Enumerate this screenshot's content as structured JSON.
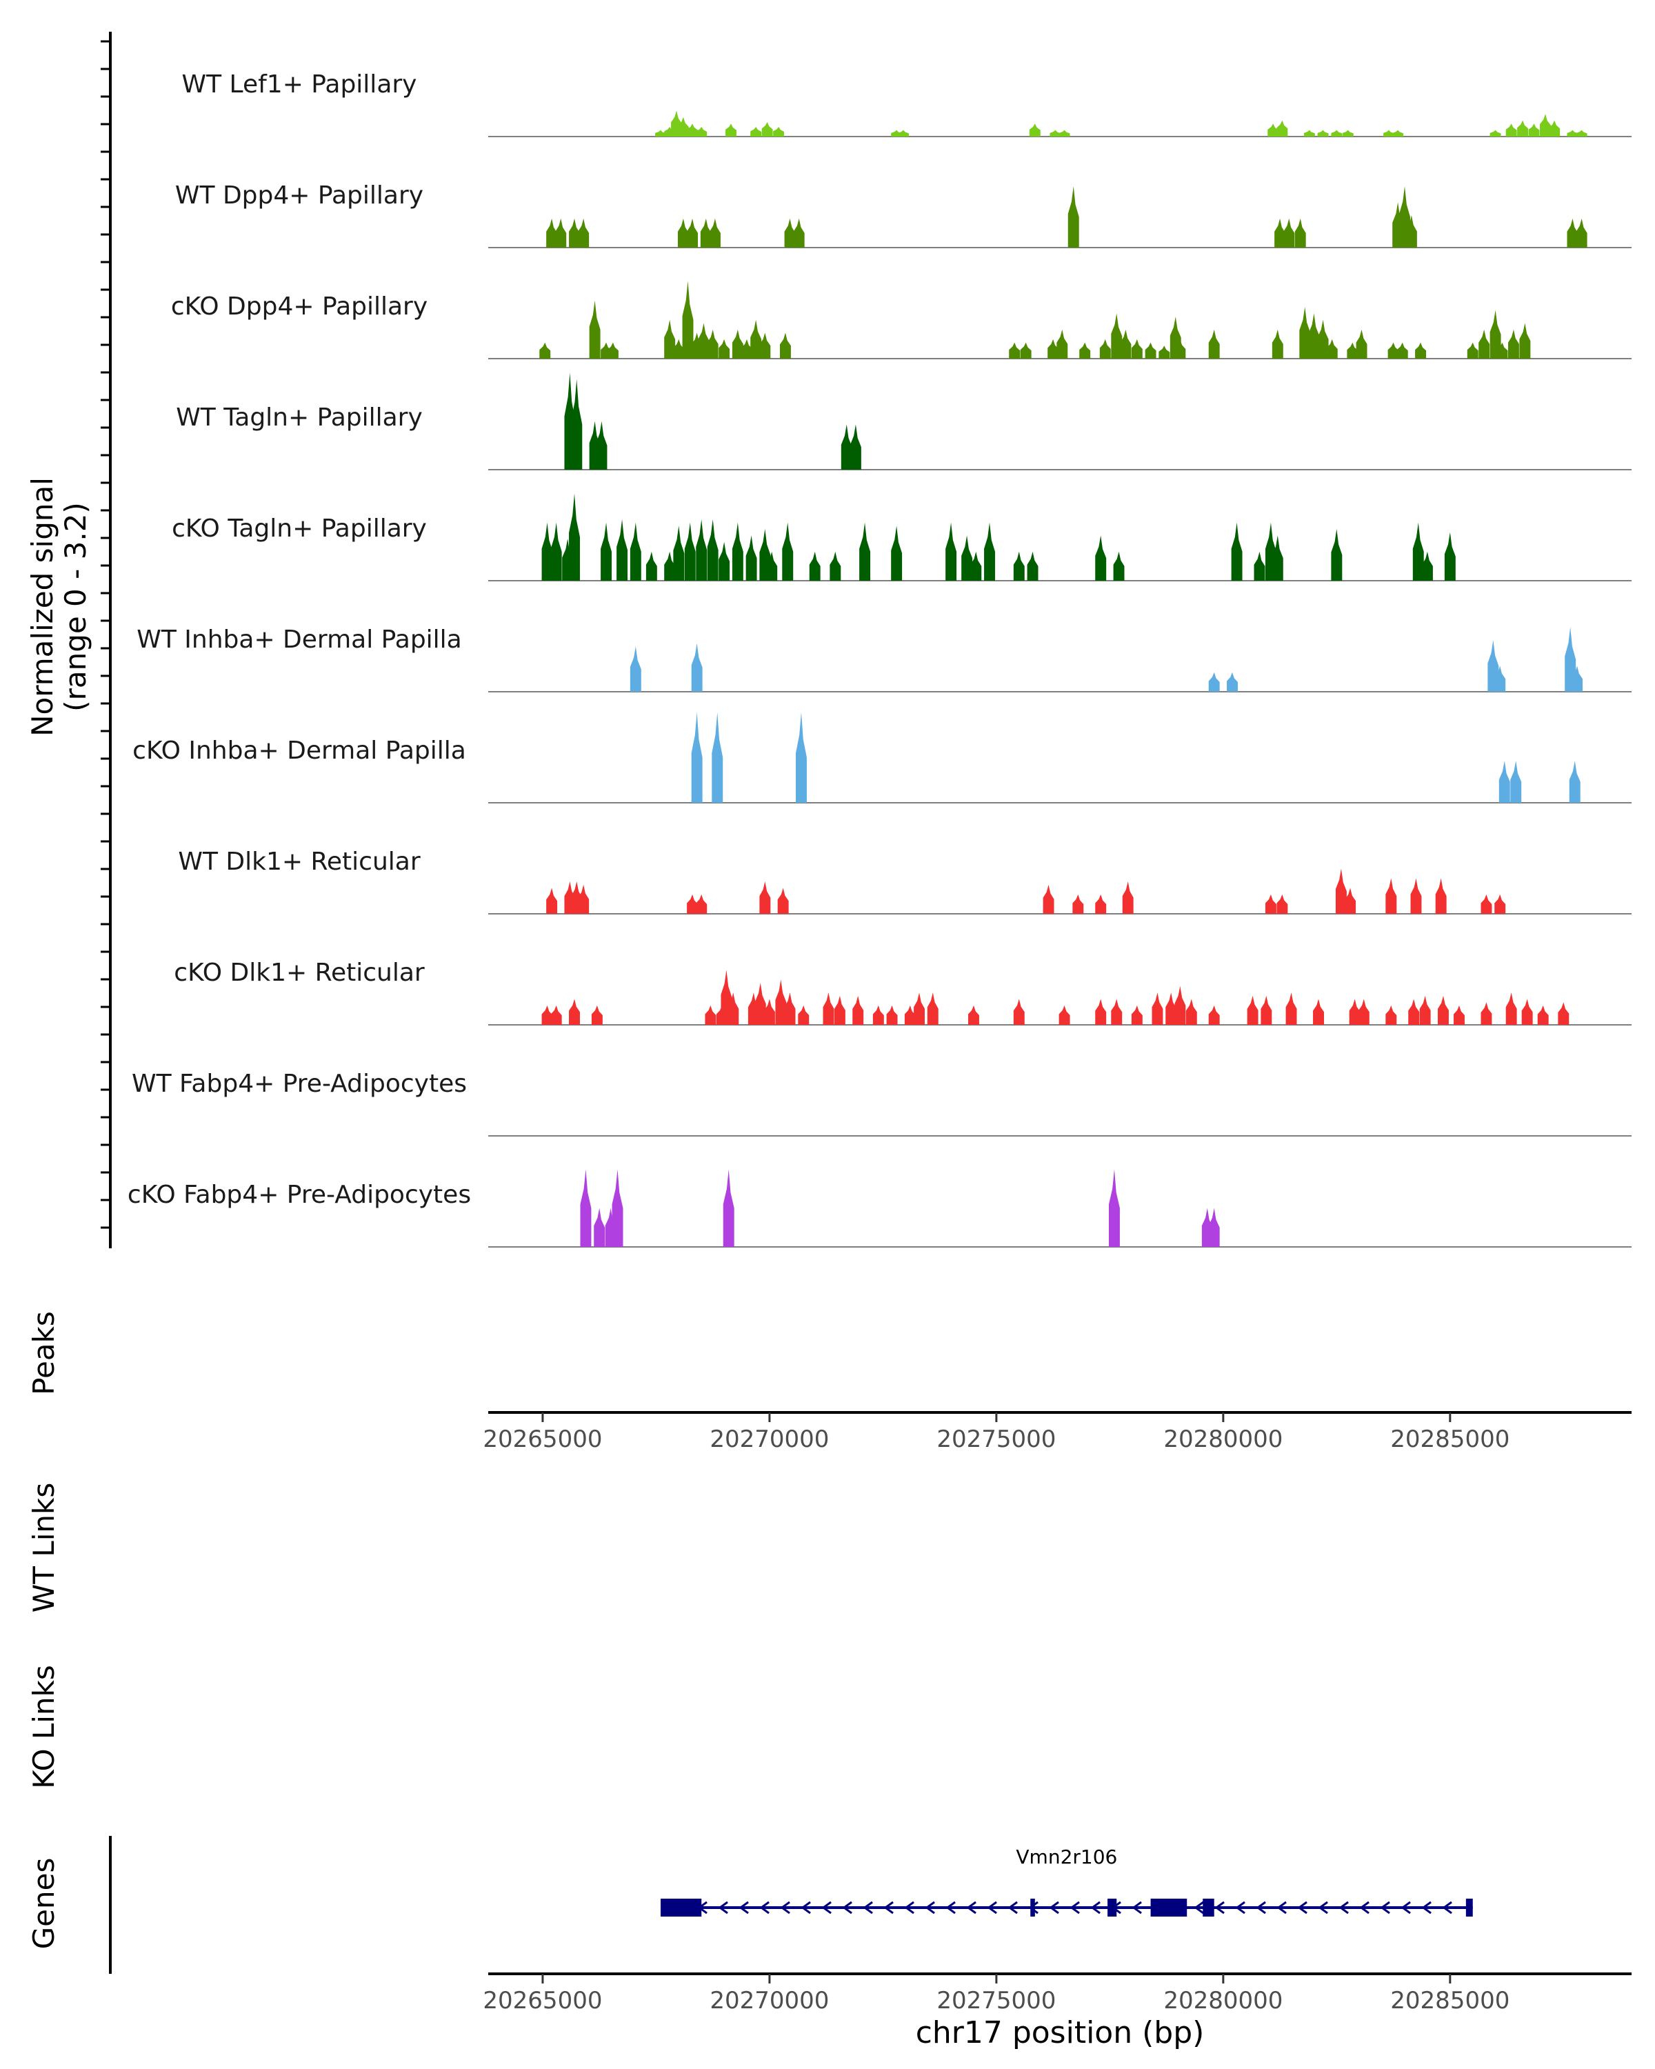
{
  "chart_data": {
    "type": "area",
    "title": "",
    "xlabel": "chr17 position (bp)",
    "ylabel": "Normalized signal",
    "ylabel_range": "(range 0 - 3.2)",
    "ylim": [
      0,
      3.2
    ],
    "xlim": [
      20263800,
      20289000
    ],
    "x_ticks": [
      20265000,
      20270000,
      20275000,
      20280000,
      20285000
    ],
    "x_tick_labels": [
      "20265000",
      "20270000",
      "20275000",
      "20280000",
      "20285000"
    ],
    "series": [
      {
        "name": "WT Lef1+ Papillary",
        "color": "#7ACC1A",
        "peaks": [
          [
            20267600,
            0.2
          ],
          [
            20267800,
            0.3
          ],
          [
            20267950,
            0.8
          ],
          [
            20268100,
            0.6
          ],
          [
            20268300,
            0.4
          ],
          [
            20268500,
            0.3
          ],
          [
            20269150,
            0.4
          ],
          [
            20269700,
            0.3
          ],
          [
            20269950,
            0.45
          ],
          [
            20270200,
            0.3
          ],
          [
            20272800,
            0.2
          ],
          [
            20272950,
            0.2
          ],
          [
            20275850,
            0.4
          ],
          [
            20276300,
            0.2
          ],
          [
            20276500,
            0.2
          ],
          [
            20281100,
            0.4
          ],
          [
            20281300,
            0.5
          ],
          [
            20281900,
            0.2
          ],
          [
            20282200,
            0.2
          ],
          [
            20282500,
            0.2
          ],
          [
            20282750,
            0.2
          ],
          [
            20283650,
            0.2
          ],
          [
            20283850,
            0.2
          ],
          [
            20286000,
            0.2
          ],
          [
            20286350,
            0.4
          ],
          [
            20286600,
            0.5
          ],
          [
            20286850,
            0.4
          ],
          [
            20287100,
            0.7
          ],
          [
            20287300,
            0.5
          ],
          [
            20287700,
            0.2
          ],
          [
            20287900,
            0.2
          ]
        ]
      },
      {
        "name": "WT Dpp4+ Papillary",
        "color": "#4D8A00",
        "peaks": [
          [
            20265200,
            0.9
          ],
          [
            20265400,
            0.9
          ],
          [
            20265700,
            0.9
          ],
          [
            20265900,
            0.9
          ],
          [
            20268100,
            0.9
          ],
          [
            20268300,
            0.9
          ],
          [
            20268600,
            0.9
          ],
          [
            20268800,
            0.9
          ],
          [
            20270450,
            0.9
          ],
          [
            20270650,
            0.9
          ],
          [
            20276700,
            1.9
          ],
          [
            20281250,
            0.9
          ],
          [
            20281450,
            0.9
          ],
          [
            20281700,
            0.9
          ],
          [
            20283850,
            1.4
          ],
          [
            20284000,
            1.9
          ],
          [
            20284150,
            1.0
          ],
          [
            20287700,
            0.9
          ],
          [
            20287900,
            0.9
          ]
        ]
      },
      {
        "name": "cKO Dpp4+ Papillary",
        "color": "#4D8A00",
        "peaks": [
          [
            20265050,
            0.5
          ],
          [
            20266150,
            1.8
          ],
          [
            20266400,
            0.5
          ],
          [
            20266550,
            0.5
          ],
          [
            20267800,
            1.2
          ],
          [
            20268000,
            0.6
          ],
          [
            20268200,
            2.4
          ],
          [
            20268400,
            0.8
          ],
          [
            20268550,
            1.1
          ],
          [
            20268750,
            0.9
          ],
          [
            20269000,
            0.6
          ],
          [
            20269300,
            0.9
          ],
          [
            20269500,
            0.6
          ],
          [
            20269700,
            1.2
          ],
          [
            20269900,
            0.8
          ],
          [
            20270350,
            0.8
          ],
          [
            20275400,
            0.5
          ],
          [
            20275650,
            0.5
          ],
          [
            20276250,
            0.6
          ],
          [
            20276450,
            0.9
          ],
          [
            20276950,
            0.5
          ],
          [
            20277400,
            0.6
          ],
          [
            20277650,
            1.4
          ],
          [
            20277850,
            0.9
          ],
          [
            20278100,
            0.6
          ],
          [
            20278400,
            0.5
          ],
          [
            20278700,
            0.4
          ],
          [
            20278950,
            1.3
          ],
          [
            20279050,
            0.6
          ],
          [
            20279800,
            0.9
          ],
          [
            20281200,
            0.9
          ],
          [
            20281800,
            1.6
          ],
          [
            20282000,
            1.4
          ],
          [
            20282200,
            1.2
          ],
          [
            20282400,
            0.6
          ],
          [
            20282850,
            0.5
          ],
          [
            20283050,
            0.9
          ],
          [
            20283750,
            0.5
          ],
          [
            20283950,
            0.5
          ],
          [
            20284350,
            0.5
          ],
          [
            20285500,
            0.5
          ],
          [
            20285750,
            0.9
          ],
          [
            20286000,
            1.5
          ],
          [
            20286150,
            0.5
          ],
          [
            20286400,
            0.9
          ],
          [
            20286650,
            1.1
          ]
        ]
      },
      {
        "name": "WT Tagln+ Papillary",
        "color": "#005E00",
        "peaks": [
          [
            20265600,
            3.0
          ],
          [
            20265750,
            2.8
          ],
          [
            20266150,
            1.5
          ],
          [
            20266300,
            1.5
          ],
          [
            20271700,
            1.4
          ],
          [
            20271900,
            1.4
          ]
        ]
      },
      {
        "name": "cKO Tagln+ Papillary",
        "color": "#005E00",
        "peaks": [
          [
            20265100,
            1.8
          ],
          [
            20265300,
            1.8
          ],
          [
            20265550,
            1.3
          ],
          [
            20265700,
            2.7
          ],
          [
            20266400,
            1.8
          ],
          [
            20266750,
            1.9
          ],
          [
            20267050,
            1.8
          ],
          [
            20267400,
            0.9
          ],
          [
            20267800,
            0.9
          ],
          [
            20268000,
            1.7
          ],
          [
            20268250,
            1.8
          ],
          [
            20268500,
            1.9
          ],
          [
            20268750,
            1.9
          ],
          [
            20269000,
            1.2
          ],
          [
            20269300,
            1.8
          ],
          [
            20269600,
            1.4
          ],
          [
            20269900,
            1.6
          ],
          [
            20270050,
            0.9
          ],
          [
            20270400,
            1.8
          ],
          [
            20271000,
            0.9
          ],
          [
            20271450,
            0.9
          ],
          [
            20272100,
            1.8
          ],
          [
            20272800,
            1.7
          ],
          [
            20274000,
            1.8
          ],
          [
            20274350,
            1.4
          ],
          [
            20274550,
            0.9
          ],
          [
            20274850,
            1.8
          ],
          [
            20275500,
            0.9
          ],
          [
            20275800,
            0.9
          ],
          [
            20277300,
            1.4
          ],
          [
            20277700,
            0.9
          ],
          [
            20280300,
            1.8
          ],
          [
            20280800,
            0.9
          ],
          [
            20281050,
            1.8
          ],
          [
            20281200,
            1.4
          ],
          [
            20282500,
            1.6
          ],
          [
            20284300,
            1.8
          ],
          [
            20284500,
            0.9
          ],
          [
            20285000,
            1.5
          ]
        ]
      },
      {
        "name": "WT Inhba+ Dermal Papilla",
        "color": "#5DADE2",
        "peaks": [
          [
            20267050,
            1.4
          ],
          [
            20268400,
            1.5
          ],
          [
            20279800,
            0.6
          ],
          [
            20280200,
            0.6
          ],
          [
            20285950,
            1.6
          ],
          [
            20286100,
            0.8
          ],
          [
            20287650,
            2.0
          ],
          [
            20287800,
            0.8
          ]
        ]
      },
      {
        "name": "cKO Inhba+ Dermal Papilla",
        "color": "#5DADE2",
        "peaks": [
          [
            20268400,
            2.8
          ],
          [
            20268850,
            2.8
          ],
          [
            20270700,
            2.8
          ],
          [
            20286200,
            1.3
          ],
          [
            20286450,
            1.3
          ],
          [
            20287750,
            1.3
          ]
        ]
      },
      {
        "name": "WT Dlk1+ Reticular",
        "color": "#F23030",
        "peaks": [
          [
            20265200,
            0.8
          ],
          [
            20265600,
            1.0
          ],
          [
            20265750,
            1.0
          ],
          [
            20265900,
            0.9
          ],
          [
            20268300,
            0.6
          ],
          [
            20268500,
            0.6
          ],
          [
            20269900,
            1.0
          ],
          [
            20270300,
            0.8
          ],
          [
            20276150,
            0.9
          ],
          [
            20276800,
            0.6
          ],
          [
            20277300,
            0.6
          ],
          [
            20277900,
            1.0
          ],
          [
            20281050,
            0.6
          ],
          [
            20281300,
            0.6
          ],
          [
            20282600,
            1.4
          ],
          [
            20282800,
            0.8
          ],
          [
            20283700,
            1.1
          ],
          [
            20284250,
            1.1
          ],
          [
            20284800,
            1.1
          ],
          [
            20285800,
            0.6
          ],
          [
            20286100,
            0.6
          ]
        ]
      },
      {
        "name": "cKO Dlk1+ Reticular",
        "color": "#F23030",
        "peaks": [
          [
            20265100,
            0.6
          ],
          [
            20265300,
            0.6
          ],
          [
            20265700,
            0.8
          ],
          [
            20266200,
            0.6
          ],
          [
            20268700,
            0.6
          ],
          [
            20268950,
            0.6
          ],
          [
            20269050,
            1.7
          ],
          [
            20269200,
            1.0
          ],
          [
            20269650,
            1.0
          ],
          [
            20269800,
            1.3
          ],
          [
            20270000,
            0.8
          ],
          [
            20270250,
            1.4
          ],
          [
            20270450,
            1.0
          ],
          [
            20270750,
            0.6
          ],
          [
            20271300,
            1.0
          ],
          [
            20271550,
            0.9
          ],
          [
            20271950,
            0.9
          ],
          [
            20272400,
            0.6
          ],
          [
            20272700,
            0.6
          ],
          [
            20273100,
            0.6
          ],
          [
            20273300,
            1.0
          ],
          [
            20273600,
            1.0
          ],
          [
            20274500,
            0.6
          ],
          [
            20275500,
            0.8
          ],
          [
            20276500,
            0.6
          ],
          [
            20277300,
            0.8
          ],
          [
            20277650,
            0.8
          ],
          [
            20278100,
            0.6
          ],
          [
            20278550,
            1.0
          ],
          [
            20278850,
            1.0
          ],
          [
            20279050,
            1.2
          ],
          [
            20279300,
            0.8
          ],
          [
            20279800,
            0.6
          ],
          [
            20280650,
            0.9
          ],
          [
            20280950,
            0.9
          ],
          [
            20281500,
            1.0
          ],
          [
            20282100,
            0.8
          ],
          [
            20282900,
            0.8
          ],
          [
            20283100,
            0.8
          ],
          [
            20283700,
            0.6
          ],
          [
            20284200,
            0.8
          ],
          [
            20284450,
            0.9
          ],
          [
            20284850,
            0.9
          ],
          [
            20285200,
            0.6
          ],
          [
            20285800,
            0.7
          ],
          [
            20286350,
            1.0
          ],
          [
            20286700,
            0.8
          ],
          [
            20287050,
            0.6
          ],
          [
            20287500,
            0.7
          ]
        ]
      },
      {
        "name": "WT Fabp4+ Pre-Adipocytes",
        "color": "#B040E0",
        "peaks": []
      },
      {
        "name": "cKO Fabp4+ Pre-Adipocytes",
        "color": "#B040E0",
        "peaks": [
          [
            20265950,
            2.4
          ],
          [
            20266250,
            1.2
          ],
          [
            20266500,
            1.2
          ],
          [
            20266650,
            2.4
          ],
          [
            20269100,
            2.4
          ],
          [
            20277600,
            2.4
          ],
          [
            20279650,
            1.2
          ],
          [
            20279800,
            1.2
          ]
        ]
      }
    ],
    "panel_labels": [
      "Peaks",
      "WT Links",
      "KO Links",
      "Genes"
    ],
    "gene": {
      "name": "Vmn2r106",
      "start": 20267600,
      "end": 20285500,
      "strand": "-",
      "color": "#00007F",
      "exons": [
        [
          20267600,
          20268500
        ],
        [
          20275750,
          20275850
        ],
        [
          20277450,
          20277650
        ],
        [
          20278400,
          20279200
        ],
        [
          20279550,
          20279800
        ],
        [
          20285350,
          20285500
        ]
      ]
    }
  }
}
